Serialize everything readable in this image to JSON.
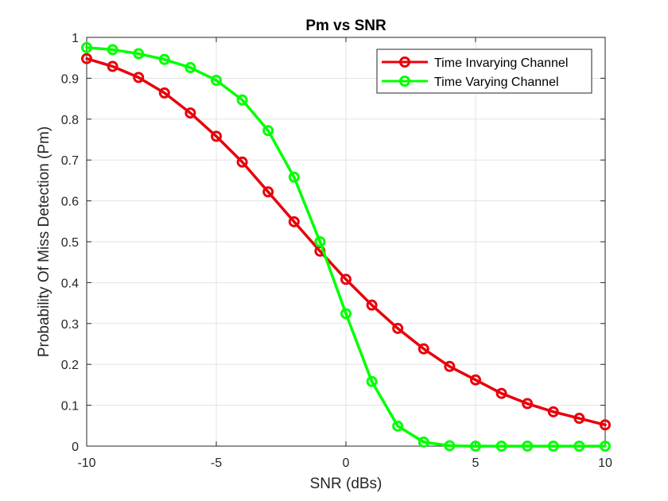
{
  "chart_data": {
    "type": "line",
    "title": "Pm vs SNR",
    "xlabel": "SNR (dBs)",
    "ylabel": "Probability Of Miss Detection (Pm)",
    "xlim": [
      -10,
      10
    ],
    "ylim": [
      0,
      1
    ],
    "xticks": [
      -10,
      -5,
      0,
      5,
      10
    ],
    "yticks": [
      0,
      0.1,
      0.2,
      0.3,
      0.4,
      0.5,
      0.6,
      0.7,
      0.8,
      0.9,
      1
    ],
    "grid": true,
    "legend_position": "top-right",
    "x": [
      -10,
      -9,
      -8,
      -7,
      -6,
      -5,
      -4,
      -3,
      -2,
      -1,
      0,
      1,
      2,
      3,
      4,
      5,
      6,
      7,
      8,
      9,
      10
    ],
    "series": [
      {
        "name": "Time Invarying Channel",
        "color": "#e8000b",
        "marker": "circle",
        "values": [
          0.948,
          0.929,
          0.902,
          0.864,
          0.815,
          0.758,
          0.695,
          0.622,
          0.549,
          0.477,
          0.408,
          0.345,
          0.288,
          0.238,
          0.195,
          0.162,
          0.129,
          0.104,
          0.084,
          0.068,
          0.052
        ]
      },
      {
        "name": "Time Varying Channel",
        "color": "#00ff00",
        "marker": "circle",
        "values": [
          0.975,
          0.97,
          0.96,
          0.946,
          0.926,
          0.895,
          0.847,
          0.772,
          0.658,
          0.5,
          0.324,
          0.158,
          0.049,
          0.01,
          0.001,
          0.0,
          0.0,
          0.0,
          0.0,
          0.0,
          0.0
        ]
      }
    ]
  }
}
